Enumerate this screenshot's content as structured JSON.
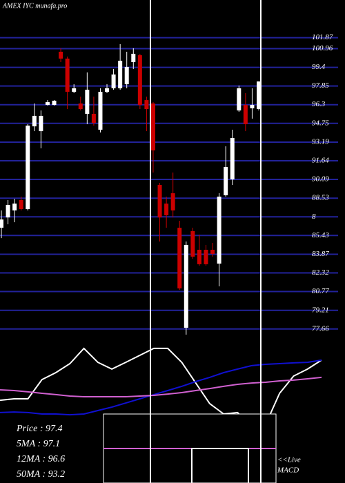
{
  "chart_data": {
    "type": "candlestick",
    "title": "AMEX  IYC munafa.pro",
    "ylim": [
      76.9,
      105.0
    ],
    "yticks": [
      101.87,
      100.96,
      99.4,
      97.85,
      96.3,
      94.75,
      93.19,
      91.64,
      90.09,
      88.53,
      {
        "value": 86.98,
        "label": "8"
      },
      85.43,
      83.87,
      82.32,
      80.77,
      79.21,
      77.66
    ],
    "grid": true,
    "up_color": "#ffffff",
    "down_color": "#cc0000",
    "open": [
      86.07,
      86.93,
      87.51,
      88.37,
      87.62,
      94.5,
      94.1,
      96.28,
      96.28,
      100.7,
      100.13,
      97.37,
      96.4,
      95.54,
      95.54,
      94.22,
      97.37,
      97.66,
      97.66,
      98.0,
      99.84,
      100.41,
      96.68,
      96.4,
      89.63,
      88.08,
      88.94,
      86.07,
      77.76,
      85.79,
      84.24,
      84.24,
      84.24,
      83.09,
      88.77,
      90.09,
      95.82,
      96.28,
      96.0,
      95.94
    ],
    "high": [
      87.51,
      88.37,
      88.48,
      88.66,
      94.68,
      96.4,
      95.82,
      96.68,
      96.68,
      100.99,
      100.3,
      98.0,
      96.97,
      98.98,
      96.97,
      97.66,
      98.0,
      99.27,
      101.33,
      100.7,
      100.99,
      100.53,
      96.97,
      96.51,
      89.8,
      88.66,
      90.66,
      86.65,
      84.93,
      86.07,
      85.5,
      84.64,
      84.81,
      88.94,
      92.84,
      94.22,
      97.89,
      97.26,
      97.66,
      98.23
    ],
    "low": [
      85.21,
      86.36,
      86.53,
      87.51,
      87.51,
      94.1,
      92.67,
      96.23,
      96.23,
      99.84,
      95.94,
      97.26,
      95.82,
      94.68,
      94.56,
      93.99,
      97.26,
      97.54,
      97.54,
      97.66,
      99.27,
      95.94,
      94.1,
      90.66,
      84.93,
      86.07,
      86.93,
      80.91,
      77.19,
      83.49,
      82.92,
      82.92,
      83.67,
      81.2,
      88.66,
      89.63,
      95.71,
      94.1,
      95.14,
      95.82
    ],
    "close": [
      86.76,
      87.97,
      88.08,
      87.62,
      94.56,
      95.37,
      95.37,
      96.51,
      96.63,
      100.13,
      97.37,
      97.66,
      95.94,
      97.54,
      94.79,
      97.37,
      97.66,
      98.81,
      99.95,
      99.44,
      100.53,
      96.28,
      95.94,
      92.5,
      86.93,
      87.11,
      87.51,
      81.03,
      84.64,
      83.67,
      83.04,
      83.04,
      83.9,
      88.66,
      91.12,
      93.53,
      97.66,
      94.68,
      96.28,
      98.23
    ],
    "indicator": {
      "ylim": [
        0,
        100
      ],
      "series": [
        {
          "color": "#ffffff",
          "values": [
            57.1,
            58.1,
            58.1,
            71.4,
            76.2,
            82.4,
            92.9,
            83.3,
            78.6,
            83.3,
            88.1,
            92.9,
            92.9,
            83.3,
            69.0,
            54.8,
            47.6,
            48.6,
            38.1,
            40.5,
            61.9,
            73.8,
            78.6,
            84.8
          ]
        },
        {
          "color": "#1010d0",
          "values": [
            48.6,
            49.0,
            48.6,
            47.6,
            47.6,
            47.1,
            47.6,
            50.0,
            52.4,
            55.2,
            58.1,
            61.0,
            63.8,
            66.7,
            70.0,
            72.9,
            76.2,
            78.6,
            81.0,
            81.9,
            82.4,
            82.9,
            83.3,
            84.8
          ]
        },
        {
          "color": "#d060d0",
          "values": [
            64.3,
            63.8,
            62.9,
            61.9,
            61.0,
            60.0,
            59.5,
            59.5,
            59.5,
            59.5,
            60.0,
            60.5,
            61.4,
            62.4,
            63.8,
            65.2,
            66.7,
            68.1,
            69.0,
            69.5,
            70.5,
            71.0,
            71.9,
            72.9
          ]
        }
      ]
    },
    "legend_text": [
      "Price  :  97.4",
      "5MA : 97.1",
      "12MA : 96.6",
      "50MA : 93.2"
    ],
    "macd_label": [
      "<<Live",
      "MACD"
    ]
  }
}
